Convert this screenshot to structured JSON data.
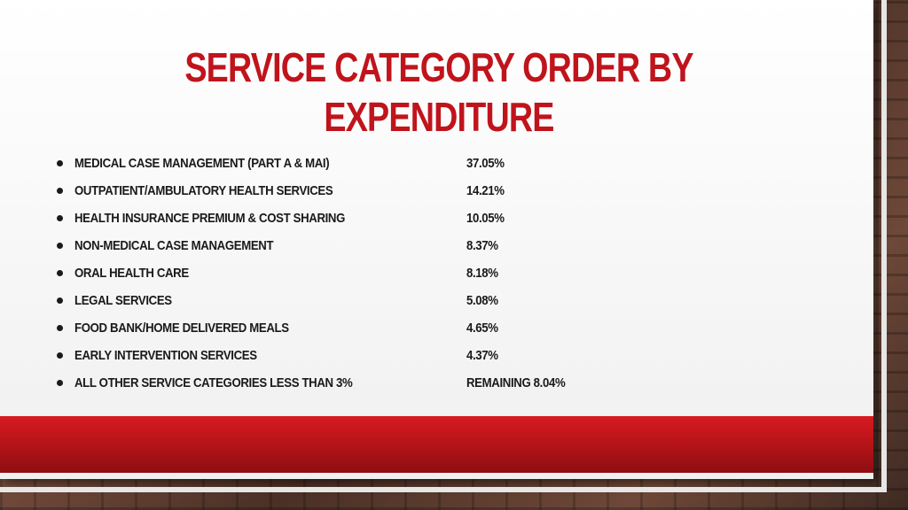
{
  "slide": {
    "title": "SERVICE CATEGORY ORDER BY EXPENDITURE",
    "accent_color": "#c0141c",
    "items": [
      {
        "label": "MEDICAL CASE MANAGEMENT (PART A & MAI)",
        "value": "37.05%"
      },
      {
        "label": "OUTPATIENT/AMBULATORY HEALTH SERVICES",
        "value": "14.21%"
      },
      {
        "label": "HEALTH INSURANCE PREMIUM & COST SHARING",
        "value": "10.05%"
      },
      {
        "label": "NON-MEDICAL CASE MANAGEMENT",
        "value": "8.37%"
      },
      {
        "label": "ORAL HEALTH CARE",
        "value": "8.18%"
      },
      {
        "label": "LEGAL SERVICES",
        "value": "5.08%"
      },
      {
        "label": "FOOD BANK/HOME DELIVERED MEALS",
        "value": "4.65%"
      },
      {
        "label": "EARLY INTERVENTION SERVICES",
        "value": "4.37%"
      },
      {
        "label": "ALL OTHER SERVICE CATEGORIES LESS THAN 3%",
        "value": "REMAINING 8.04%"
      }
    ]
  }
}
